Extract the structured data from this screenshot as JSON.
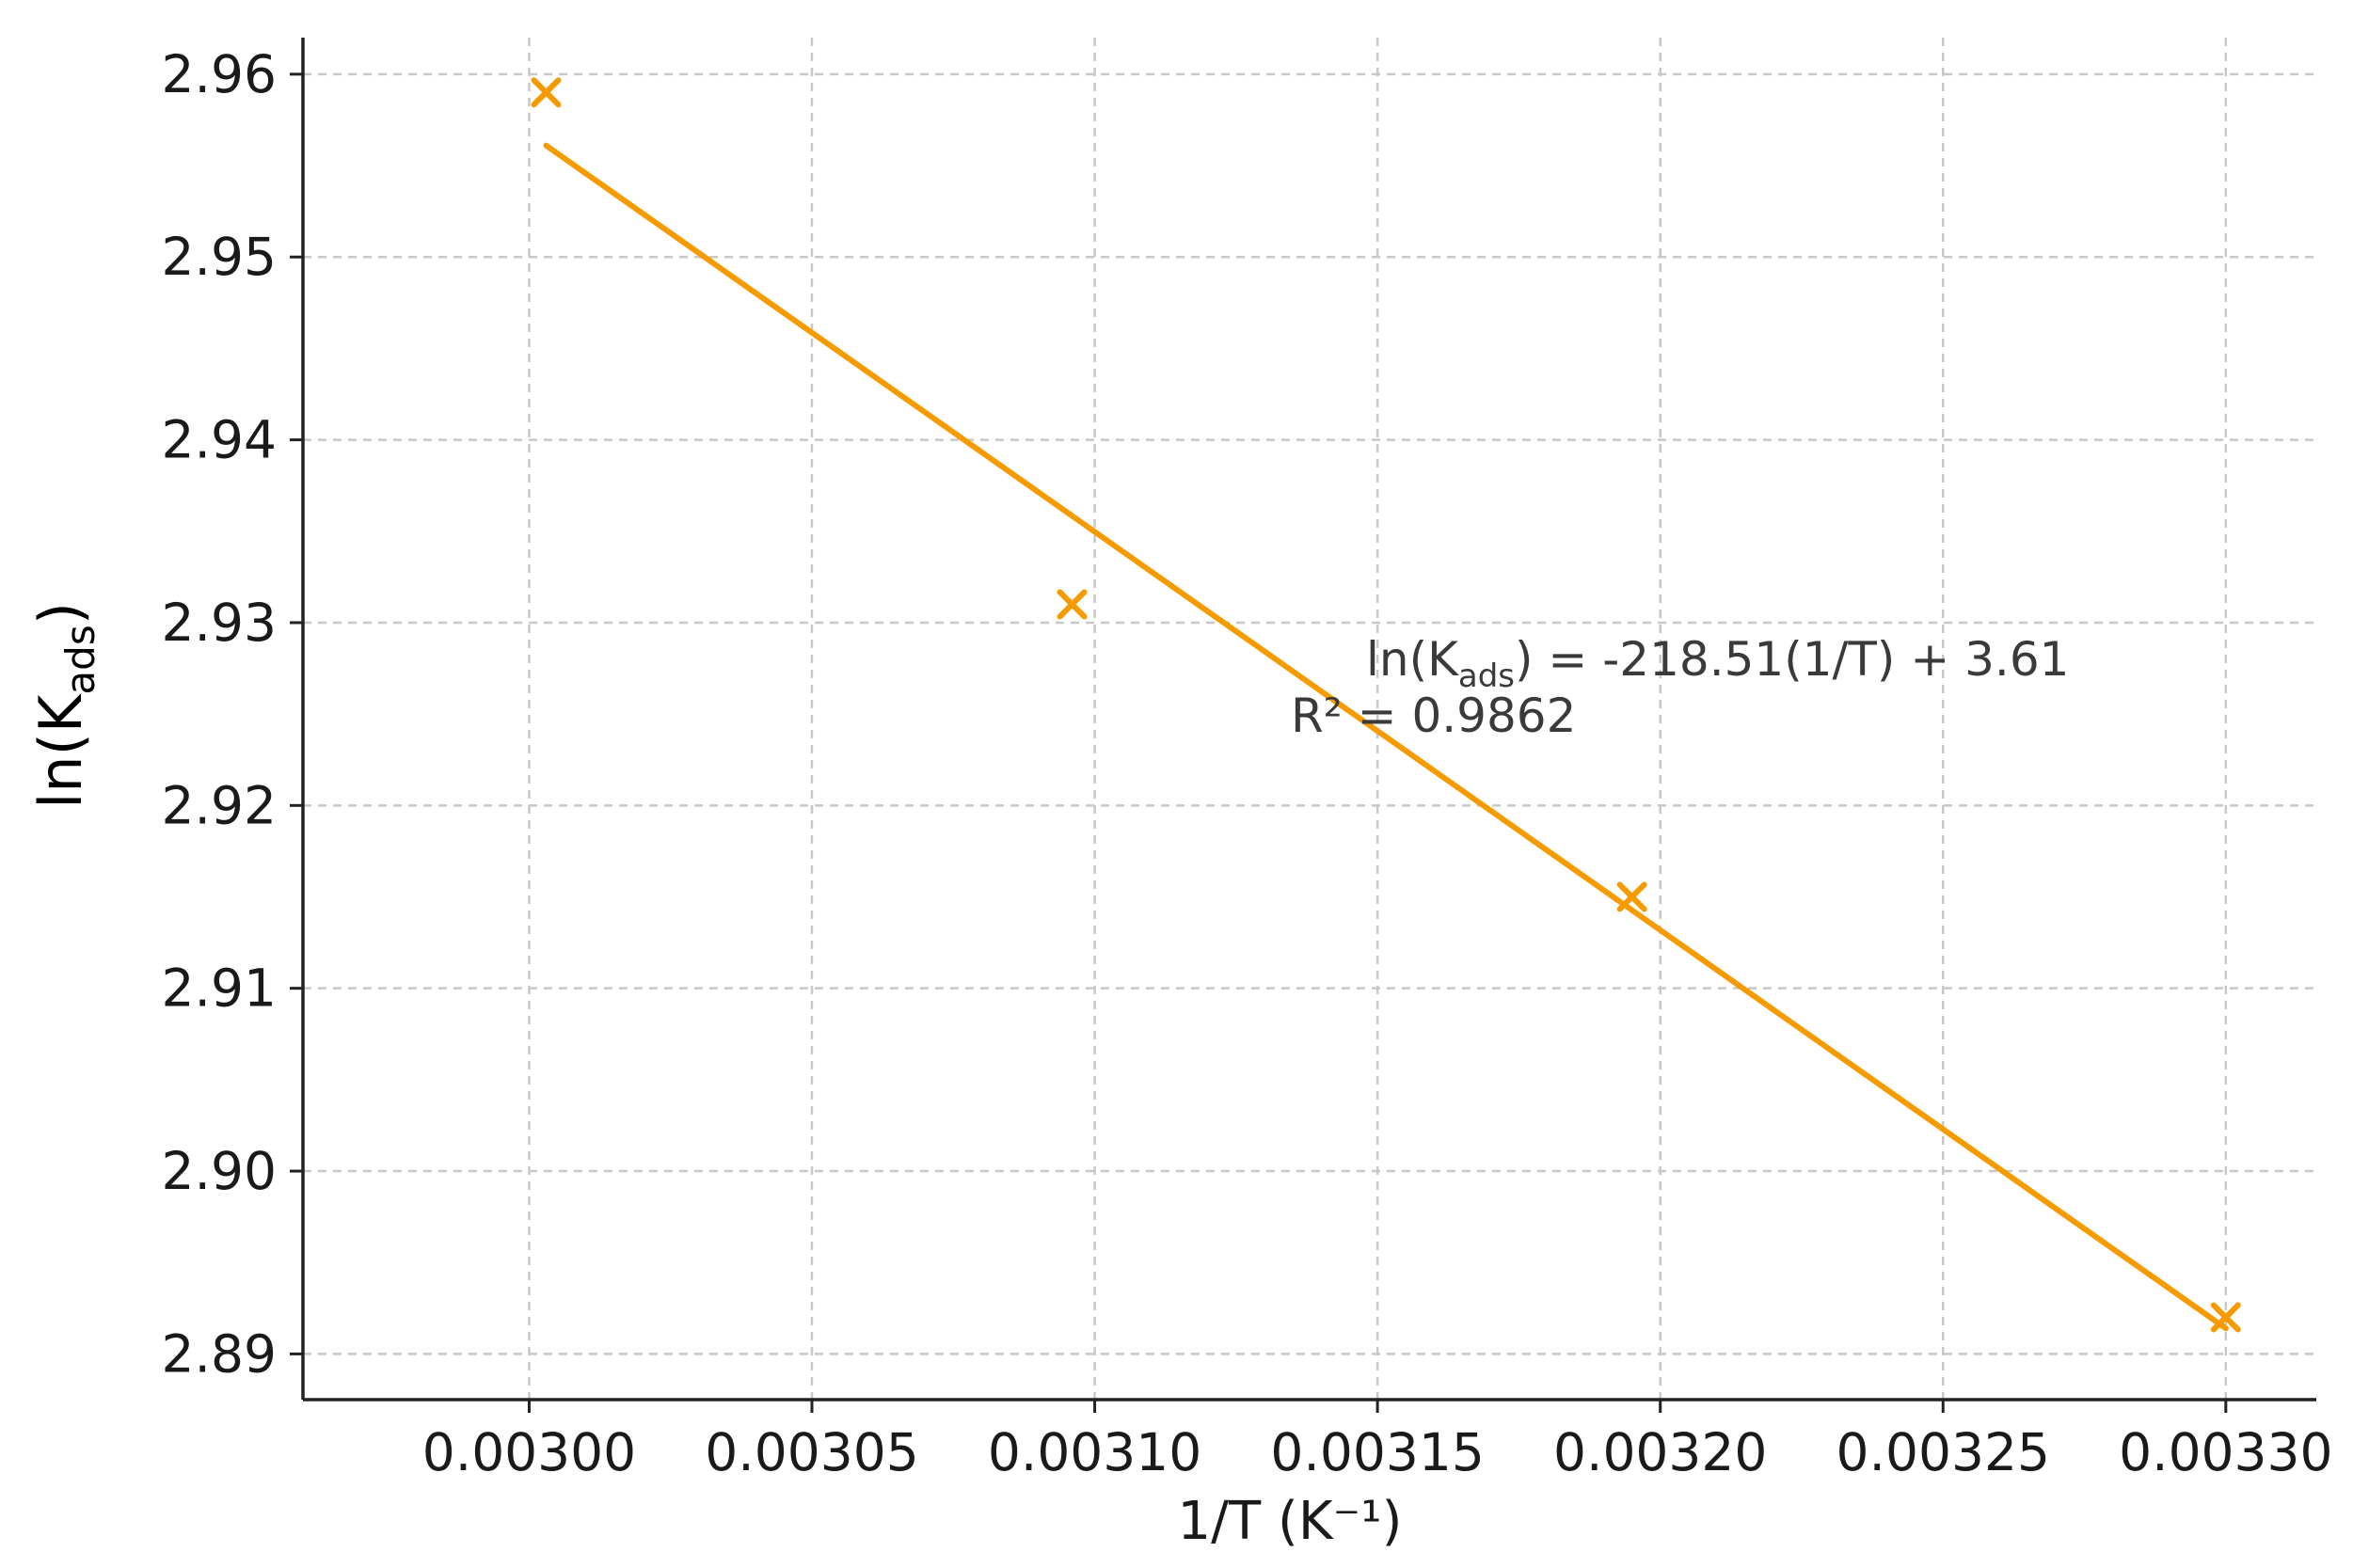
{
  "chart_data": {
    "type": "scatter",
    "xlabel": "1/T (K⁻¹)",
    "ylabel_prefix": "ln(K",
    "ylabel_subscript": "ads",
    "ylabel_suffix": ")",
    "xlim": [
      0.00296,
      0.003316
    ],
    "ylim": [
      2.8875,
      2.962
    ],
    "x_ticks": [
      0.003,
      0.00305,
      0.0031,
      0.00315,
      0.0032,
      0.00325,
      0.0033
    ],
    "x_tick_labels": [
      "0.00300",
      "0.00305",
      "0.00310",
      "0.00315",
      "0.00320",
      "0.00325",
      "0.00330"
    ],
    "y_ticks": [
      2.89,
      2.9,
      2.91,
      2.92,
      2.93,
      2.94,
      2.95,
      2.96
    ],
    "y_tick_labels": [
      "2.89",
      "2.90",
      "2.91",
      "2.92",
      "2.93",
      "2.94",
      "2.95",
      "2.96"
    ],
    "grid": true,
    "series": [
      {
        "marker": "x",
        "color": "#f59b00",
        "points": [
          {
            "x": 0.003003,
            "y": 2.959
          },
          {
            "x": 0.003096,
            "y": 2.931
          },
          {
            "x": 0.003195,
            "y": 2.915
          },
          {
            "x": 0.0033,
            "y": 2.892
          }
        ]
      }
    ],
    "fit_line": {
      "color": "#f59b00",
      "x": [
        0.003003,
        0.0033
      ],
      "y": [
        2.9561,
        2.8914
      ]
    },
    "annotation": {
      "eq_prefix": "ln(K",
      "eq_subscript": "ads",
      "eq_suffix": ") = -218.51(1/T) + 3.61",
      "r2": "R² = 0.9862"
    }
  }
}
